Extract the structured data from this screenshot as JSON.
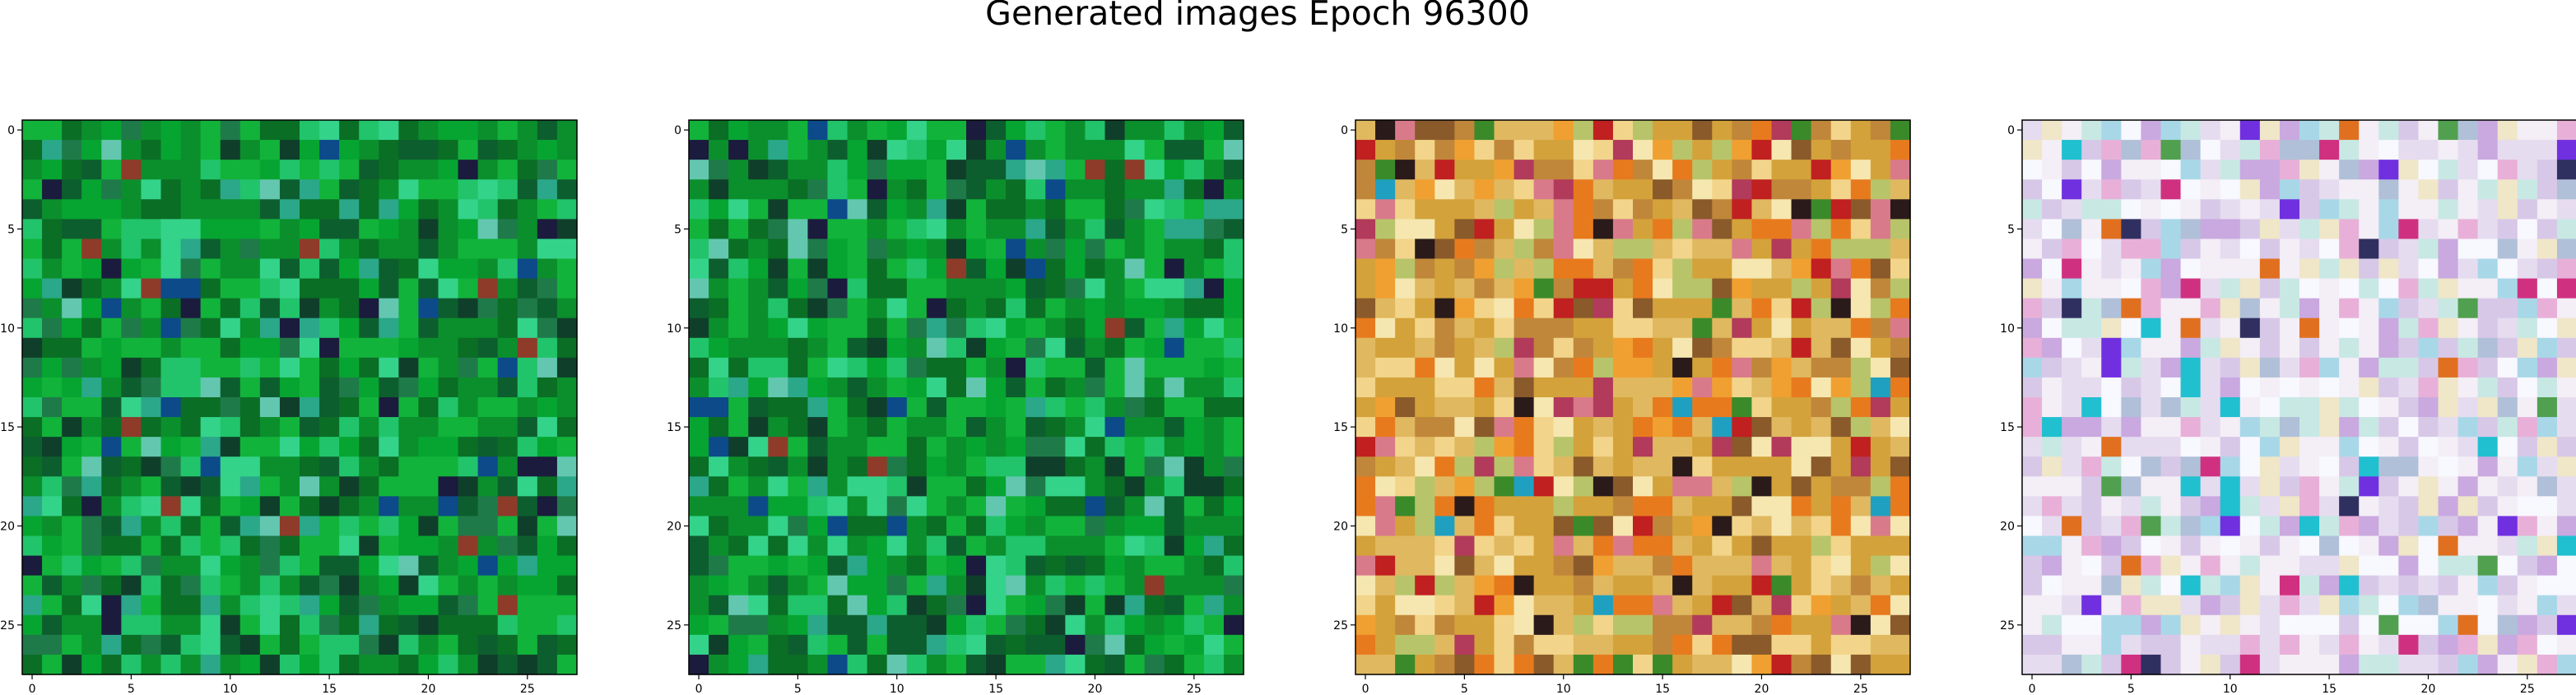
{
  "figure": {
    "title": "Generated images Epoch 96300"
  },
  "chart_data": {
    "type": "heatmap",
    "title": "Generated images Epoch 96300",
    "grid": false,
    "panels": [
      {
        "name": "",
        "rows": 28,
        "cols": 28,
        "xlim": [
          -0.5,
          27.5
        ],
        "ylim": [
          27.5,
          -0.5
        ],
        "xticks": [
          0,
          5,
          10,
          15,
          20,
          25
        ],
        "yticks": [
          0,
          5,
          10,
          15,
          20,
          25
        ],
        "palette": [
          "#0b8f2c",
          "#12b33a",
          "#0a6e25",
          "#21c46a",
          "#0d5e2e",
          "#34d38a",
          "#06a531",
          "#1f7a4a",
          "#0f3f2a",
          "#2aa889",
          "#0c4a8a",
          "#63c7b0",
          "#1b1b3d",
          "#8e3b2a"
        ],
        "weights": [
          18,
          16,
          12,
          8,
          8,
          5,
          10,
          6,
          4,
          4,
          2,
          2,
          2,
          1
        ],
        "seed": 11
      },
      {
        "name": "",
        "rows": 28,
        "cols": 28,
        "xlim": [
          -0.5,
          27.5
        ],
        "ylim": [
          27.5,
          -0.5
        ],
        "xticks": [
          0,
          5,
          10,
          15,
          20,
          25
        ],
        "yticks": [
          0,
          5,
          10,
          15,
          20,
          25
        ],
        "palette": [
          "#0b8f2c",
          "#12b33a",
          "#0a6e25",
          "#21c46a",
          "#0d5e2e",
          "#34d38a",
          "#06a531",
          "#1f7a4a",
          "#0f3f2a",
          "#2aa889",
          "#0c4a8a",
          "#63c7b0",
          "#1b1b3d",
          "#8e3b2a"
        ],
        "weights": [
          18,
          16,
          12,
          8,
          8,
          5,
          10,
          6,
          4,
          4,
          2,
          2,
          2,
          1
        ],
        "seed": 13
      },
      {
        "name": "",
        "rows": 28,
        "cols": 28,
        "xlim": [
          -0.5,
          27.5
        ],
        "ylim": [
          27.5,
          -0.5
        ],
        "xticks": [
          0,
          5,
          10,
          15,
          20,
          25
        ],
        "yticks": [
          0,
          5,
          10,
          15,
          20,
          25
        ],
        "palette": [
          "#d4a23a",
          "#e0b860",
          "#c0873a",
          "#f2d58a",
          "#e87a1e",
          "#b8c46a",
          "#d97a8a",
          "#8a5a2a",
          "#f6e7b0",
          "#3a8a2a",
          "#b23a5a",
          "#2a1a1a",
          "#20a0c0",
          "#c02020",
          "#f0a030"
        ],
        "weights": [
          16,
          12,
          10,
          10,
          6,
          6,
          5,
          5,
          6,
          3,
          3,
          2,
          1,
          2,
          5
        ],
        "seed": 29
      },
      {
        "name": "",
        "rows": 28,
        "cols": 28,
        "xlim": [
          -0.5,
          27.5
        ],
        "ylim": [
          27.5,
          -0.5
        ],
        "xticks": [
          0,
          5,
          10,
          15,
          20,
          25
        ],
        "yticks": [
          0,
          5,
          10,
          15,
          20,
          25
        ],
        "palette": [
          "#f4eef6",
          "#e6dcf0",
          "#d8c8e8",
          "#c8e8e4",
          "#f0e6c8",
          "#c9a9e0",
          "#e8b0d8",
          "#a8d8e8",
          "#f8f8ff",
          "#b0c0d8",
          "#e07020",
          "#7030e0",
          "#20c0d0",
          "#d03080",
          "#303060",
          "#50a050"
        ],
        "weights": [
          18,
          14,
          10,
          9,
          8,
          7,
          6,
          6,
          12,
          4,
          2,
          2,
          2,
          2,
          1,
          1
        ],
        "seed": 47
      }
    ]
  }
}
